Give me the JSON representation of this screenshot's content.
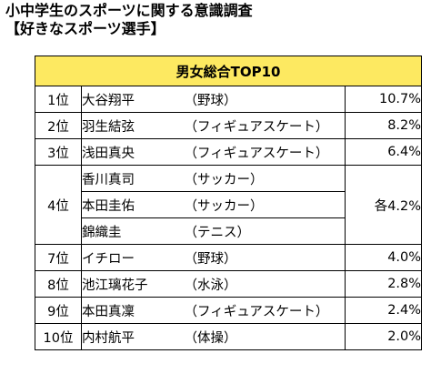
{
  "title_line1": "小中学生のスポーツに関する意識調査",
  "title_line2": "【好きなスポーツ選手】",
  "table": {
    "header": "男女総合TOP10",
    "header_bg": "#fde961",
    "rows": [
      {
        "rank": "1位",
        "name": "大谷翔平",
        "sport": "（野球）",
        "pct": "10.7%"
      },
      {
        "rank": "2位",
        "name": "羽生結弦",
        "sport": "（フィギュアスケート）",
        "pct": "8.2%"
      },
      {
        "rank": "3位",
        "name": "浅田真央",
        "sport": "（フィギュアスケート）",
        "pct": "6.4%"
      },
      {
        "rank": "4位",
        "pct": "各4.2%",
        "players": [
          {
            "name": "香川真司",
            "sport": "（サッカー）"
          },
          {
            "name": "本田圭佑",
            "sport": "（サッカー）"
          },
          {
            "name": "錦織圭",
            "sport": "（テニス）"
          }
        ]
      },
      {
        "rank": "7位",
        "name": "イチロー",
        "sport": "（野球）",
        "pct": "4.0%"
      },
      {
        "rank": "8位",
        "name": "池江璃花子",
        "sport": "（水泳）",
        "pct": "2.8%"
      },
      {
        "rank": "9位",
        "name": "本田真凜",
        "sport": "（フィギュアスケート）",
        "pct": "2.4%"
      },
      {
        "rank": "10位",
        "name": "内村航平",
        "sport": "（体操）",
        "pct": "2.0%"
      }
    ]
  }
}
